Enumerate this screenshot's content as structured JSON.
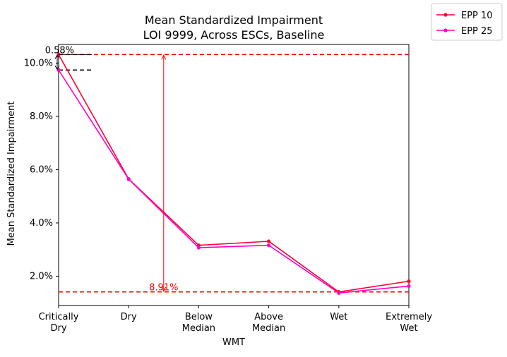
{
  "chart_data": {
    "type": "line",
    "title": "Mean Standardized Impairment",
    "subtitle": "LOI 9999, Across ESCs, Baseline",
    "xlabel": "WMT",
    "ylabel": "Mean Standardized Impairment",
    "categories": [
      "Critically\nDry",
      "Dry",
      "Below\nMedian",
      "Above\nMedian",
      "Wet",
      "Extremely\nWet"
    ],
    "ylim": [
      0.009,
      0.107
    ],
    "yticks": [
      0.02,
      0.04,
      0.06,
      0.08,
      0.1
    ],
    "ytick_labels": [
      "2.0%",
      "4.0%",
      "6.0%",
      "8.0%",
      "10.0%"
    ],
    "grid": false,
    "legend_position": "outside top-right",
    "series": [
      {
        "name": "EPP 10",
        "color": "#ff0033",
        "values": [
          0.1032,
          0.0565,
          0.0316,
          0.0331,
          0.0141,
          0.0181
        ]
      },
      {
        "name": "EPP 25",
        "color": "#ff00cc",
        "values": [
          0.0974,
          0.0564,
          0.0307,
          0.0316,
          0.0137,
          0.0163
        ]
      }
    ],
    "annotations": [
      {
        "text": "0.58%",
        "color": "#000000",
        "y_from": 0.0974,
        "y_to": 0.1032
      },
      {
        "text": "8.91%",
        "color": "#ff0000",
        "y_from": 0.0141,
        "y_to": 0.1032
      }
    ],
    "reference_lines": [
      {
        "y": 0.1032,
        "color": "#ff0000",
        "style": "dashed",
        "span": "full"
      },
      {
        "y": 0.0141,
        "color": "#ff0000",
        "style": "dashed",
        "span": "full"
      },
      {
        "y": 0.0974,
        "color": "#000000",
        "style": "dashed",
        "span": "short"
      }
    ]
  }
}
